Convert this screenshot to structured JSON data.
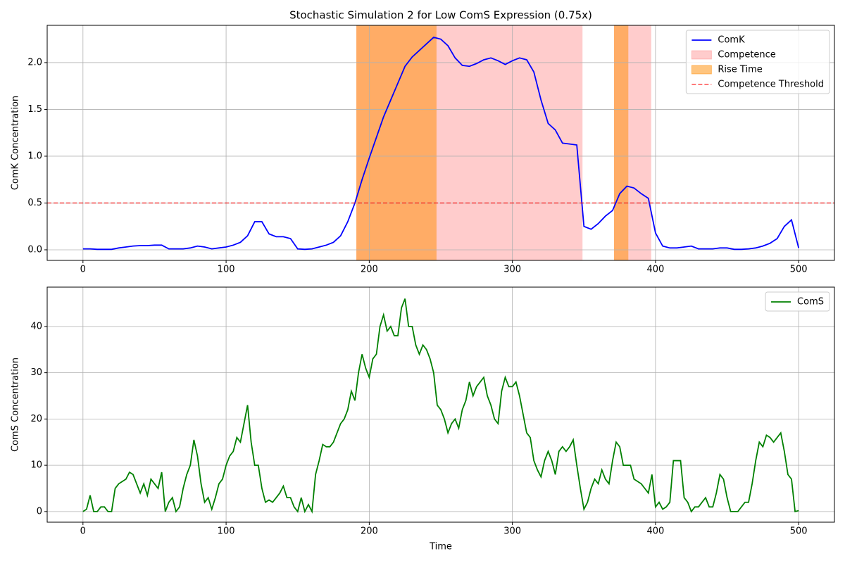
{
  "chart_data": [
    {
      "type": "line",
      "title": "Stochastic Simulation 2 for Low ComS Expression (0.75x)",
      "y_label": "ComK Concentration",
      "xlim": [
        -25,
        525
      ],
      "ylim": [
        -0.113,
        2.398
      ],
      "xticks": [
        0,
        100,
        200,
        300,
        400,
        500
      ],
      "yticks": [
        {
          "value": 0,
          "label": "0.0"
        },
        {
          "value": 0.5,
          "label": "0.5"
        },
        {
          "value": 1,
          "label": "1.0"
        },
        {
          "value": 1.5,
          "label": "1.5"
        },
        {
          "value": 2,
          "label": "2.0"
        }
      ],
      "grid": true,
      "legend": "upper right",
      "series": [
        {
          "name": "ComK",
          "color": "#0000ff",
          "x": [
            0,
            5,
            10,
            15,
            20,
            25,
            30,
            35,
            40,
            45,
            50,
            55,
            60,
            65,
            70,
            75,
            80,
            85,
            90,
            95,
            100,
            105,
            110,
            115,
            120,
            125,
            130,
            135,
            140,
            145,
            150,
            155,
            160,
            165,
            170,
            175,
            180,
            185,
            190,
            195,
            200,
            205,
            210,
            215,
            220,
            225,
            230,
            235,
            240,
            245,
            250,
            255,
            260,
            265,
            270,
            275,
            280,
            285,
            290,
            295,
            300,
            305,
            310,
            315,
            320,
            325,
            330,
            335,
            340,
            345,
            350,
            355,
            360,
            365,
            370,
            375,
            380,
            385,
            390,
            395,
            400,
            405,
            410,
            415,
            420,
            425,
            430,
            435,
            440,
            445,
            450,
            455,
            460,
            465,
            470,
            475,
            480,
            485,
            490,
            495,
            500
          ],
          "values": [
            0.01,
            0.01,
            0.005,
            0.005,
            0.005,
            0.02,
            0.03,
            0.04,
            0.045,
            0.045,
            0.05,
            0.05,
            0.01,
            0.01,
            0.01,
            0.02,
            0.04,
            0.03,
            0.01,
            0.02,
            0.03,
            0.05,
            0.08,
            0.15,
            0.3,
            0.3,
            0.17,
            0.14,
            0.14,
            0.12,
            0.01,
            0.005,
            0.01,
            0.03,
            0.05,
            0.08,
            0.15,
            0.3,
            0.5,
            0.75,
            0.98,
            1.2,
            1.42,
            1.6,
            1.78,
            1.96,
            2.06,
            2.13,
            2.2,
            2.27,
            2.25,
            2.18,
            2.05,
            1.97,
            1.96,
            1.99,
            2.03,
            2.05,
            2.02,
            1.98,
            2.02,
            2.05,
            2.03,
            1.9,
            1.6,
            1.35,
            1.28,
            1.14,
            1.13,
            1.12,
            0.25,
            0.22,
            0.28,
            0.36,
            0.42,
            0.6,
            0.68,
            0.66,
            0.6,
            0.55,
            0.18,
            0.04,
            0.02,
            0.02,
            0.03,
            0.04,
            0.01,
            0.01,
            0.01,
            0.02,
            0.02,
            0.005,
            0.005,
            0.01,
            0.02,
            0.04,
            0.07,
            0.12,
            0.25,
            0.32,
            0.02
          ]
        }
      ],
      "spans": [
        {
          "name": "Competence",
          "color": "#ff0000",
          "opacity": 0.2,
          "ranges": [
            [
              191,
              349
            ],
            [
              371,
              397
            ]
          ]
        },
        {
          "name": "Rise Time",
          "color": "#ff8c00",
          "opacity": 0.5,
          "ranges": [
            [
              191,
              247
            ],
            [
              371,
              381
            ]
          ]
        }
      ],
      "hline": {
        "name": "Competence Threshold",
        "value": 0.5,
        "color": "#ff0000",
        "opacity": 0.6
      }
    },
    {
      "type": "line",
      "x_label": "Time",
      "y_label": "ComS Concentration",
      "xlim": [
        -25,
        525
      ],
      "ylim": [
        -2.3,
        48.5
      ],
      "xticks": [
        0,
        100,
        200,
        300,
        400,
        500
      ],
      "yticks": [
        0,
        10,
        20,
        30,
        40
      ],
      "grid": true,
      "legend": "upper right",
      "series": [
        {
          "name": "ComS",
          "color": "#008000",
          "x": [
            0,
            2.5,
            5,
            7.5,
            10,
            12.5,
            15,
            17.5,
            20,
            22.5,
            25,
            27.5,
            30,
            32.5,
            35,
            37.5,
            40,
            42.5,
            45,
            47.5,
            50,
            52.5,
            55,
            57.5,
            60,
            62.5,
            65,
            67.5,
            70,
            72.5,
            75,
            77.5,
            80,
            82.5,
            85,
            87.5,
            90,
            92.5,
            95,
            97.5,
            100,
            102.5,
            105,
            107.5,
            110,
            112.5,
            115,
            117.5,
            120,
            122.5,
            125,
            127.5,
            130,
            132.5,
            135,
            137.5,
            140,
            142.5,
            145,
            147.5,
            150,
            152.5,
            155,
            157.5,
            160,
            162.5,
            165,
            167.5,
            170,
            172.5,
            175,
            177.5,
            180,
            182.5,
            185,
            187.5,
            190,
            192.5,
            195,
            197.5,
            200,
            202.5,
            205,
            207.5,
            210,
            212.5,
            215,
            217.5,
            220,
            222.5,
            225,
            227.5,
            230,
            232.5,
            235,
            237.5,
            240,
            242.5,
            245,
            247.5,
            250,
            252.5,
            255,
            257.5,
            260,
            262.5,
            265,
            267.5,
            270,
            272.5,
            275,
            277.5,
            280,
            282.5,
            285,
            287.5,
            290,
            292.5,
            295,
            297.5,
            300,
            302.5,
            305,
            307.5,
            310,
            312.5,
            315,
            317.5,
            320,
            322.5,
            325,
            327.5,
            330,
            332.5,
            335,
            337.5,
            340,
            342.5,
            345,
            347.5,
            350,
            352.5,
            355,
            357.5,
            360,
            362.5,
            365,
            367.5,
            370,
            372.5,
            375,
            377.5,
            380,
            382.5,
            385,
            387.5,
            390,
            392.5,
            395,
            397.5,
            400,
            402.5,
            405,
            407.5,
            410,
            412.5,
            415,
            417.5,
            420,
            422.5,
            425,
            427.5,
            430,
            432.5,
            435,
            437.5,
            440,
            442.5,
            445,
            447.5,
            450,
            452.5,
            455,
            457.5,
            460,
            462.5,
            465,
            467.5,
            470,
            472.5,
            475,
            477.5,
            480,
            482.5,
            485,
            487.5,
            490,
            492.5,
            495,
            497.5,
            500
          ],
          "values": [
            0,
            0.5,
            3.5,
            0,
            0,
            1,
            1,
            0,
            0,
            5,
            6,
            6.5,
            7,
            8.5,
            8,
            6,
            4,
            6,
            3.5,
            7,
            6,
            5,
            8.5,
            0,
            2,
            3,
            0,
            1,
            5,
            8,
            10,
            15.5,
            12,
            6,
            2,
            3,
            0.5,
            3,
            6,
            7,
            10,
            12,
            13,
            16,
            15,
            19,
            23,
            15,
            10,
            10,
            5,
            2,
            2.5,
            2,
            3,
            4,
            5.5,
            3,
            3,
            1,
            0,
            3,
            0,
            1.5,
            0,
            8,
            11,
            14.5,
            14,
            14,
            15,
            17,
            19,
            20,
            22,
            26,
            24,
            30,
            34,
            31,
            29,
            33,
            34,
            40,
            42.5,
            39,
            40,
            38,
            38,
            44,
            46,
            40,
            40,
            36,
            34,
            36,
            35,
            33,
            30,
            23,
            22,
            20,
            17,
            19,
            20,
            18,
            22,
            24,
            28,
            25,
            27,
            28,
            29,
            25,
            23,
            20,
            19,
            26,
            29,
            27,
            27,
            28,
            25,
            21,
            17,
            16,
            11,
            9,
            7.5,
            11,
            13,
            11,
            8,
            13,
            14,
            13,
            14,
            15.5,
            10,
            5,
            0.5,
            2,
            5,
            7,
            6,
            9,
            7,
            6,
            11,
            15,
            14,
            10,
            10,
            10,
            7,
            6.5,
            6,
            5,
            4,
            8,
            1,
            2,
            0.5,
            1,
            2,
            11,
            11,
            11,
            3,
            2,
            0,
            1,
            1,
            2,
            3,
            1,
            1,
            4,
            8,
            7,
            3,
            0,
            0,
            0,
            1,
            2,
            2,
            6,
            11,
            15,
            14,
            16.5,
            16,
            15,
            16,
            17,
            13,
            8,
            7,
            0,
            0.2
          ]
        }
      ]
    }
  ]
}
